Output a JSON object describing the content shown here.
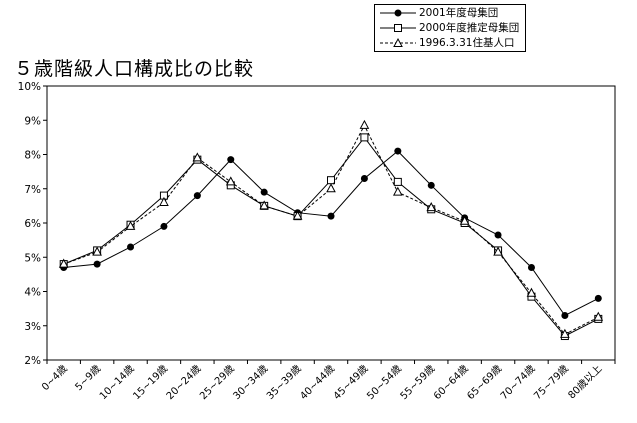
{
  "chart_data": {
    "type": "line",
    "title": "５歳階級人口構成比の比較",
    "categories": [
      "0~4歳",
      "5~9歳",
      "10~14歳",
      "15~19歳",
      "20~24歳",
      "25~29歳",
      "30~34歳",
      "35~39歳",
      "40~44歳",
      "45~49歳",
      "50~54歳",
      "55~59歳",
      "60~64歳",
      "65~69歳",
      "70~74歳",
      "75~79歳",
      "80歳以上"
    ],
    "series": [
      {
        "name": "2001年度母集団",
        "marker": "filled-circle",
        "line": "solid",
        "values": [
          4.7,
          4.8,
          5.3,
          5.9,
          6.8,
          7.85,
          6.9,
          6.3,
          6.2,
          7.3,
          8.1,
          7.1,
          6.15,
          5.65,
          4.7,
          3.3,
          3.8
        ]
      },
      {
        "name": "2000年度推定母集団",
        "marker": "open-square",
        "line": "solid",
        "values": [
          4.8,
          5.2,
          5.95,
          6.8,
          7.85,
          7.1,
          6.5,
          6.2,
          7.25,
          8.5,
          7.2,
          6.4,
          6.0,
          5.2,
          3.85,
          2.7,
          3.2
        ]
      },
      {
        "name": "1996.3.31住基人口",
        "marker": "open-triangle",
        "line": "dashed",
        "values": [
          4.8,
          5.15,
          5.9,
          6.6,
          7.9,
          7.2,
          6.5,
          6.2,
          7.0,
          8.85,
          6.9,
          6.45,
          6.05,
          5.15,
          3.95,
          2.75,
          3.25
        ]
      }
    ],
    "ylim": [
      2,
      10
    ],
    "yticks": [
      "2%",
      "3%",
      "4%",
      "5%",
      "6%",
      "7%",
      "8%",
      "9%",
      "10%"
    ],
    "grid": false,
    "legend_position": "top-right"
  }
}
